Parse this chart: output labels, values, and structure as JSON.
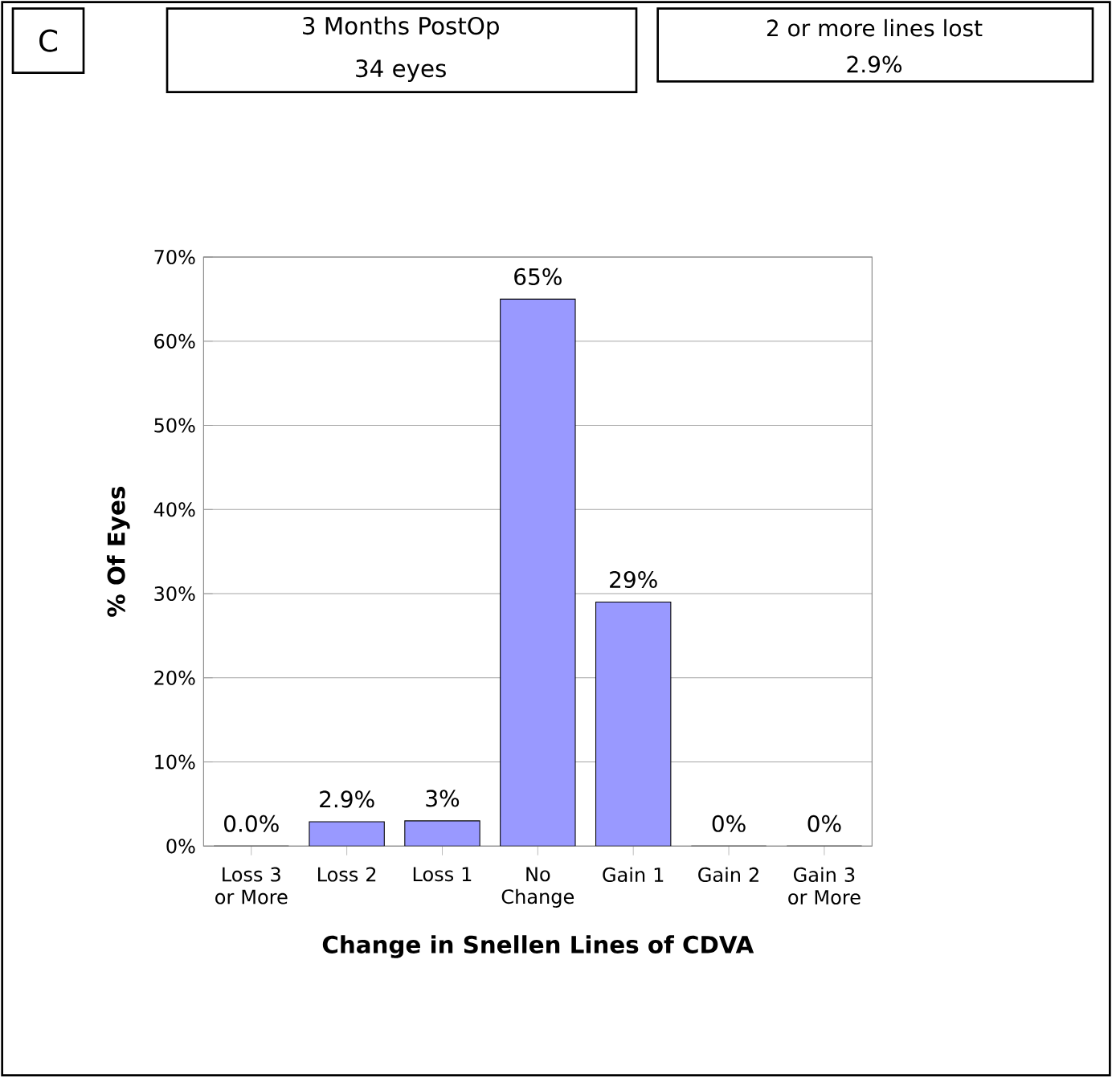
{
  "chart_data": {
    "type": "bar",
    "title": "3 Months PostOp",
    "subtitle": "34 eyes",
    "annotations": [
      "C",
      "2 or more lines lost",
      "2.9%"
    ],
    "xlabel": "Change in Snellen Lines of CDVA",
    "ylabel": "% Of Eyes",
    "categories": [
      "Loss 3 or More",
      "Loss 2",
      "Loss 1",
      "No Change",
      "Gain 1",
      "Gain 2",
      "Gain 3 or More"
    ],
    "values": [
      0,
      2.9,
      3,
      65,
      29,
      0,
      0
    ],
    "value_labels": [
      "0.0%",
      "2.9%",
      "3%",
      "65%",
      "29%",
      "0%",
      "0%"
    ],
    "color": "#9999ff",
    "ylim": [
      0,
      70
    ],
    "yticks": [
      {
        "value": 0,
        "label": "0%"
      },
      {
        "value": 10,
        "label": "10%"
      },
      {
        "value": 20,
        "label": "20%"
      },
      {
        "value": 30,
        "label": "30%"
      },
      {
        "value": 40,
        "label": "40%"
      },
      {
        "value": 50,
        "label": "50%"
      },
      {
        "value": 60,
        "label": "60%"
      },
      {
        "value": 70,
        "label": "70%"
      }
    ],
    "grid": "y"
  }
}
